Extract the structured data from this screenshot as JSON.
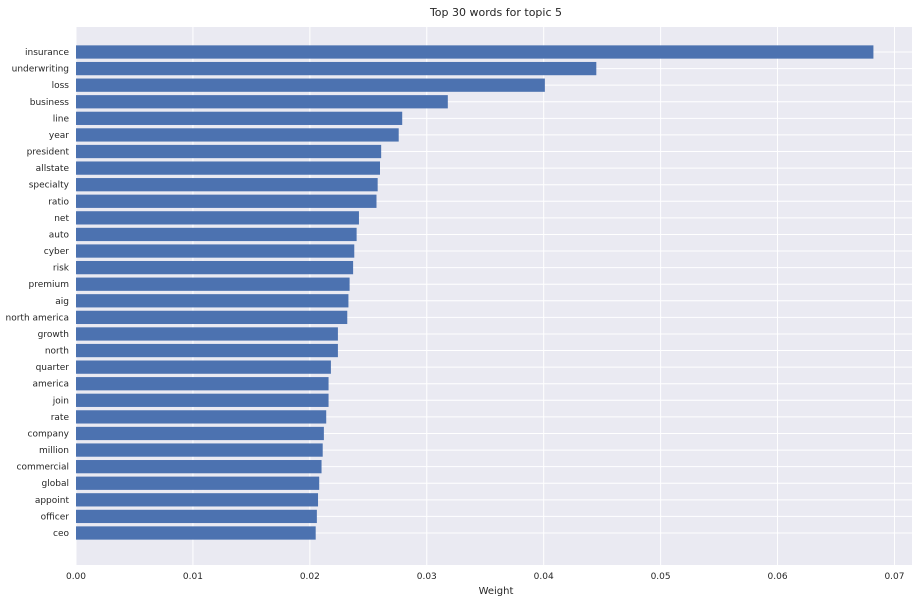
{
  "chart_data": {
    "type": "bar",
    "orientation": "horizontal",
    "title": "Top 30 words for topic 5",
    "xlabel": "Weight",
    "ylabel": "",
    "xlim": [
      0,
      0.0715
    ],
    "xticks": [
      "0.00",
      "0.01",
      "0.02",
      "0.03",
      "0.04",
      "0.05",
      "0.06",
      "0.07"
    ],
    "grid": true,
    "categories": [
      "insurance",
      "underwriting",
      "loss",
      "business",
      "line",
      "year",
      "president",
      "allstate",
      "specialty",
      "ratio",
      "net",
      "auto",
      "cyber",
      "risk",
      "premium",
      "aig",
      "north america",
      "growth",
      "north",
      "quarter",
      "america",
      "join",
      "rate",
      "company",
      "million",
      "commercial",
      "global",
      "appoint",
      "officer",
      "ceo"
    ],
    "values": [
      0.0682,
      0.0445,
      0.0401,
      0.0318,
      0.0279,
      0.0276,
      0.0261,
      0.026,
      0.0258,
      0.0257,
      0.0242,
      0.024,
      0.0238,
      0.0237,
      0.0234,
      0.0233,
      0.0232,
      0.0224,
      0.0224,
      0.0218,
      0.0216,
      0.0216,
      0.0214,
      0.0212,
      0.0211,
      0.021,
      0.0208,
      0.0207,
      0.0206,
      0.0205
    ],
    "colors": {
      "bar": "#4C72B0",
      "background": "#EAEAF2",
      "grid": "#ffffff"
    }
  }
}
